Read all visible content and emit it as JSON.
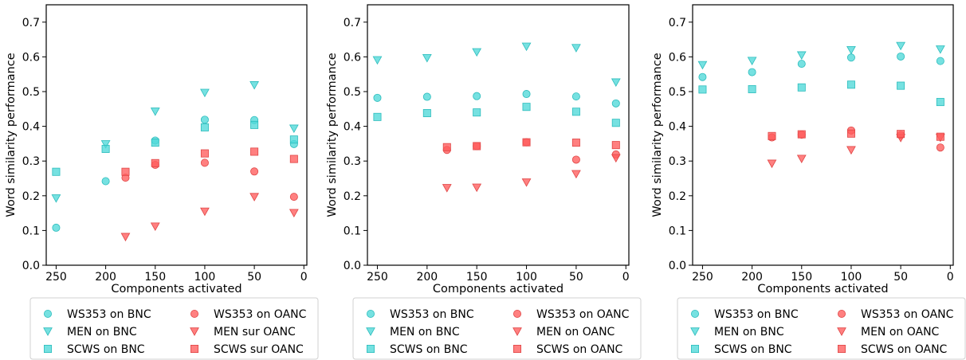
{
  "colors": {
    "cyan": "#4fd8d8",
    "cyan_edge": "#2bbcbc",
    "red": "#ff5c5c",
    "red_edge": "#e04444"
  },
  "chart_data": [
    {
      "type": "scatter",
      "xlabel": "Components activated",
      "ylabel": "Word similarity performance",
      "xlim": [
        260,
        -3
      ],
      "ylim": [
        0,
        0.75
      ],
      "x_reversed": true,
      "xticks": [
        250,
        200,
        150,
        100,
        50,
        0
      ],
      "yticks": [
        0.0,
        0.1,
        0.2,
        0.3,
        0.4,
        0.5,
        0.6,
        0.7
      ],
      "legend_position": "bottom",
      "series": [
        {
          "name": "WS353 on BNC",
          "marker": "circle",
          "color": "cyan",
          "x": [
            250,
            200,
            150,
            100,
            50,
            10
          ],
          "y": [
            0.108,
            0.242,
            0.359,
            0.419,
            0.418,
            0.349
          ]
        },
        {
          "name": "MEN on BNC",
          "marker": "triangle-down",
          "color": "cyan",
          "x": [
            250,
            200,
            150,
            100,
            50,
            10
          ],
          "y": [
            0.193,
            0.349,
            0.443,
            0.497,
            0.519,
            0.394
          ]
        },
        {
          "name": "SCWS on BNC",
          "marker": "square",
          "color": "cyan",
          "x": [
            250,
            200,
            150,
            100,
            50,
            10
          ],
          "y": [
            0.269,
            0.335,
            0.353,
            0.397,
            0.404,
            0.362
          ]
        },
        {
          "name": "WS353 on OANC",
          "marker": "circle",
          "color": "red",
          "x": [
            180,
            150,
            100,
            50,
            10
          ],
          "y": [
            0.252,
            0.289,
            0.295,
            0.27,
            0.197
          ]
        },
        {
          "name": "MEN sur OANC",
          "marker": "triangle-down",
          "color": "red",
          "x": [
            180,
            150,
            100,
            50,
            10
          ],
          "y": [
            0.082,
            0.112,
            0.155,
            0.197,
            0.151
          ]
        },
        {
          "name": "SCWS sur OANC",
          "marker": "square",
          "color": "red",
          "x": [
            180,
            150,
            100,
            50,
            10
          ],
          "y": [
            0.269,
            0.294,
            0.322,
            0.327,
            0.306
          ]
        }
      ]
    },
    {
      "type": "scatter",
      "xlabel": "Components activated",
      "ylabel": "Word similarity performance",
      "xlim": [
        260,
        -3
      ],
      "ylim": [
        0,
        0.75
      ],
      "x_reversed": true,
      "xticks": [
        250,
        200,
        150,
        100,
        50,
        0
      ],
      "yticks": [
        0.0,
        0.1,
        0.2,
        0.3,
        0.4,
        0.5,
        0.6,
        0.7
      ],
      "legend_position": "bottom",
      "series": [
        {
          "name": "WS353 on BNC",
          "marker": "circle",
          "color": "cyan",
          "x": [
            250,
            200,
            150,
            100,
            50,
            10
          ],
          "y": [
            0.482,
            0.485,
            0.487,
            0.493,
            0.486,
            0.466
          ]
        },
        {
          "name": "MEN on BNC",
          "marker": "triangle-down",
          "color": "cyan",
          "x": [
            250,
            200,
            150,
            100,
            50,
            10
          ],
          "y": [
            0.591,
            0.597,
            0.614,
            0.63,
            0.626,
            0.527
          ]
        },
        {
          "name": "SCWS on BNC",
          "marker": "square",
          "color": "cyan",
          "x": [
            250,
            200,
            150,
            100,
            50,
            10
          ],
          "y": [
            0.427,
            0.438,
            0.44,
            0.456,
            0.442,
            0.41
          ]
        },
        {
          "name": "WS353 on OANC",
          "marker": "circle",
          "color": "red",
          "x": [
            180,
            150,
            100,
            50,
            10
          ],
          "y": [
            0.332,
            0.343,
            0.354,
            0.304,
            0.319
          ]
        },
        {
          "name": "MEN on OANC",
          "marker": "triangle-down",
          "color": "red",
          "x": [
            180,
            150,
            100,
            50,
            10
          ],
          "y": [
            0.223,
            0.224,
            0.239,
            0.263,
            0.309
          ]
        },
        {
          "name": "SCWS on OANC",
          "marker": "square",
          "color": "red",
          "x": [
            180,
            150,
            100,
            50,
            10
          ],
          "y": [
            0.34,
            0.343,
            0.354,
            0.353,
            0.346
          ]
        }
      ]
    },
    {
      "type": "scatter",
      "xlabel": "Components activated",
      "ylabel": "Word similarity performance",
      "xlim": [
        260,
        -3
      ],
      "ylim": [
        0,
        0.75
      ],
      "x_reversed": true,
      "xticks": [
        250,
        200,
        150,
        100,
        50,
        0
      ],
      "yticks": [
        0.0,
        0.1,
        0.2,
        0.3,
        0.4,
        0.5,
        0.6,
        0.7
      ],
      "legend_position": "bottom",
      "series": [
        {
          "name": "WS353 on BNC",
          "marker": "circle",
          "color": "cyan",
          "x": [
            250,
            200,
            150,
            100,
            50,
            10
          ],
          "y": [
            0.542,
            0.556,
            0.58,
            0.598,
            0.601,
            0.588
          ]
        },
        {
          "name": "MEN on BNC",
          "marker": "triangle-down",
          "color": "cyan",
          "x": [
            250,
            200,
            150,
            100,
            50,
            10
          ],
          "y": [
            0.577,
            0.589,
            0.605,
            0.62,
            0.632,
            0.622
          ]
        },
        {
          "name": "SCWS on BNC",
          "marker": "square",
          "color": "cyan",
          "x": [
            250,
            200,
            150,
            100,
            50,
            10
          ],
          "y": [
            0.506,
            0.507,
            0.512,
            0.52,
            0.517,
            0.47
          ]
        },
        {
          "name": "WS353 on OANC",
          "marker": "circle",
          "color": "red",
          "x": [
            180,
            150,
            100,
            50,
            10
          ],
          "y": [
            0.368,
            0.376,
            0.388,
            0.375,
            0.339
          ]
        },
        {
          "name": "MEN on OANC",
          "marker": "triangle-down",
          "color": "red",
          "x": [
            180,
            150,
            100,
            50,
            10
          ],
          "y": [
            0.293,
            0.307,
            0.332,
            0.367,
            0.368
          ]
        },
        {
          "name": "SCWS on OANC",
          "marker": "square",
          "color": "red",
          "x": [
            180,
            150,
            100,
            50,
            10
          ],
          "y": [
            0.372,
            0.377,
            0.379,
            0.378,
            0.37
          ]
        }
      ]
    }
  ]
}
